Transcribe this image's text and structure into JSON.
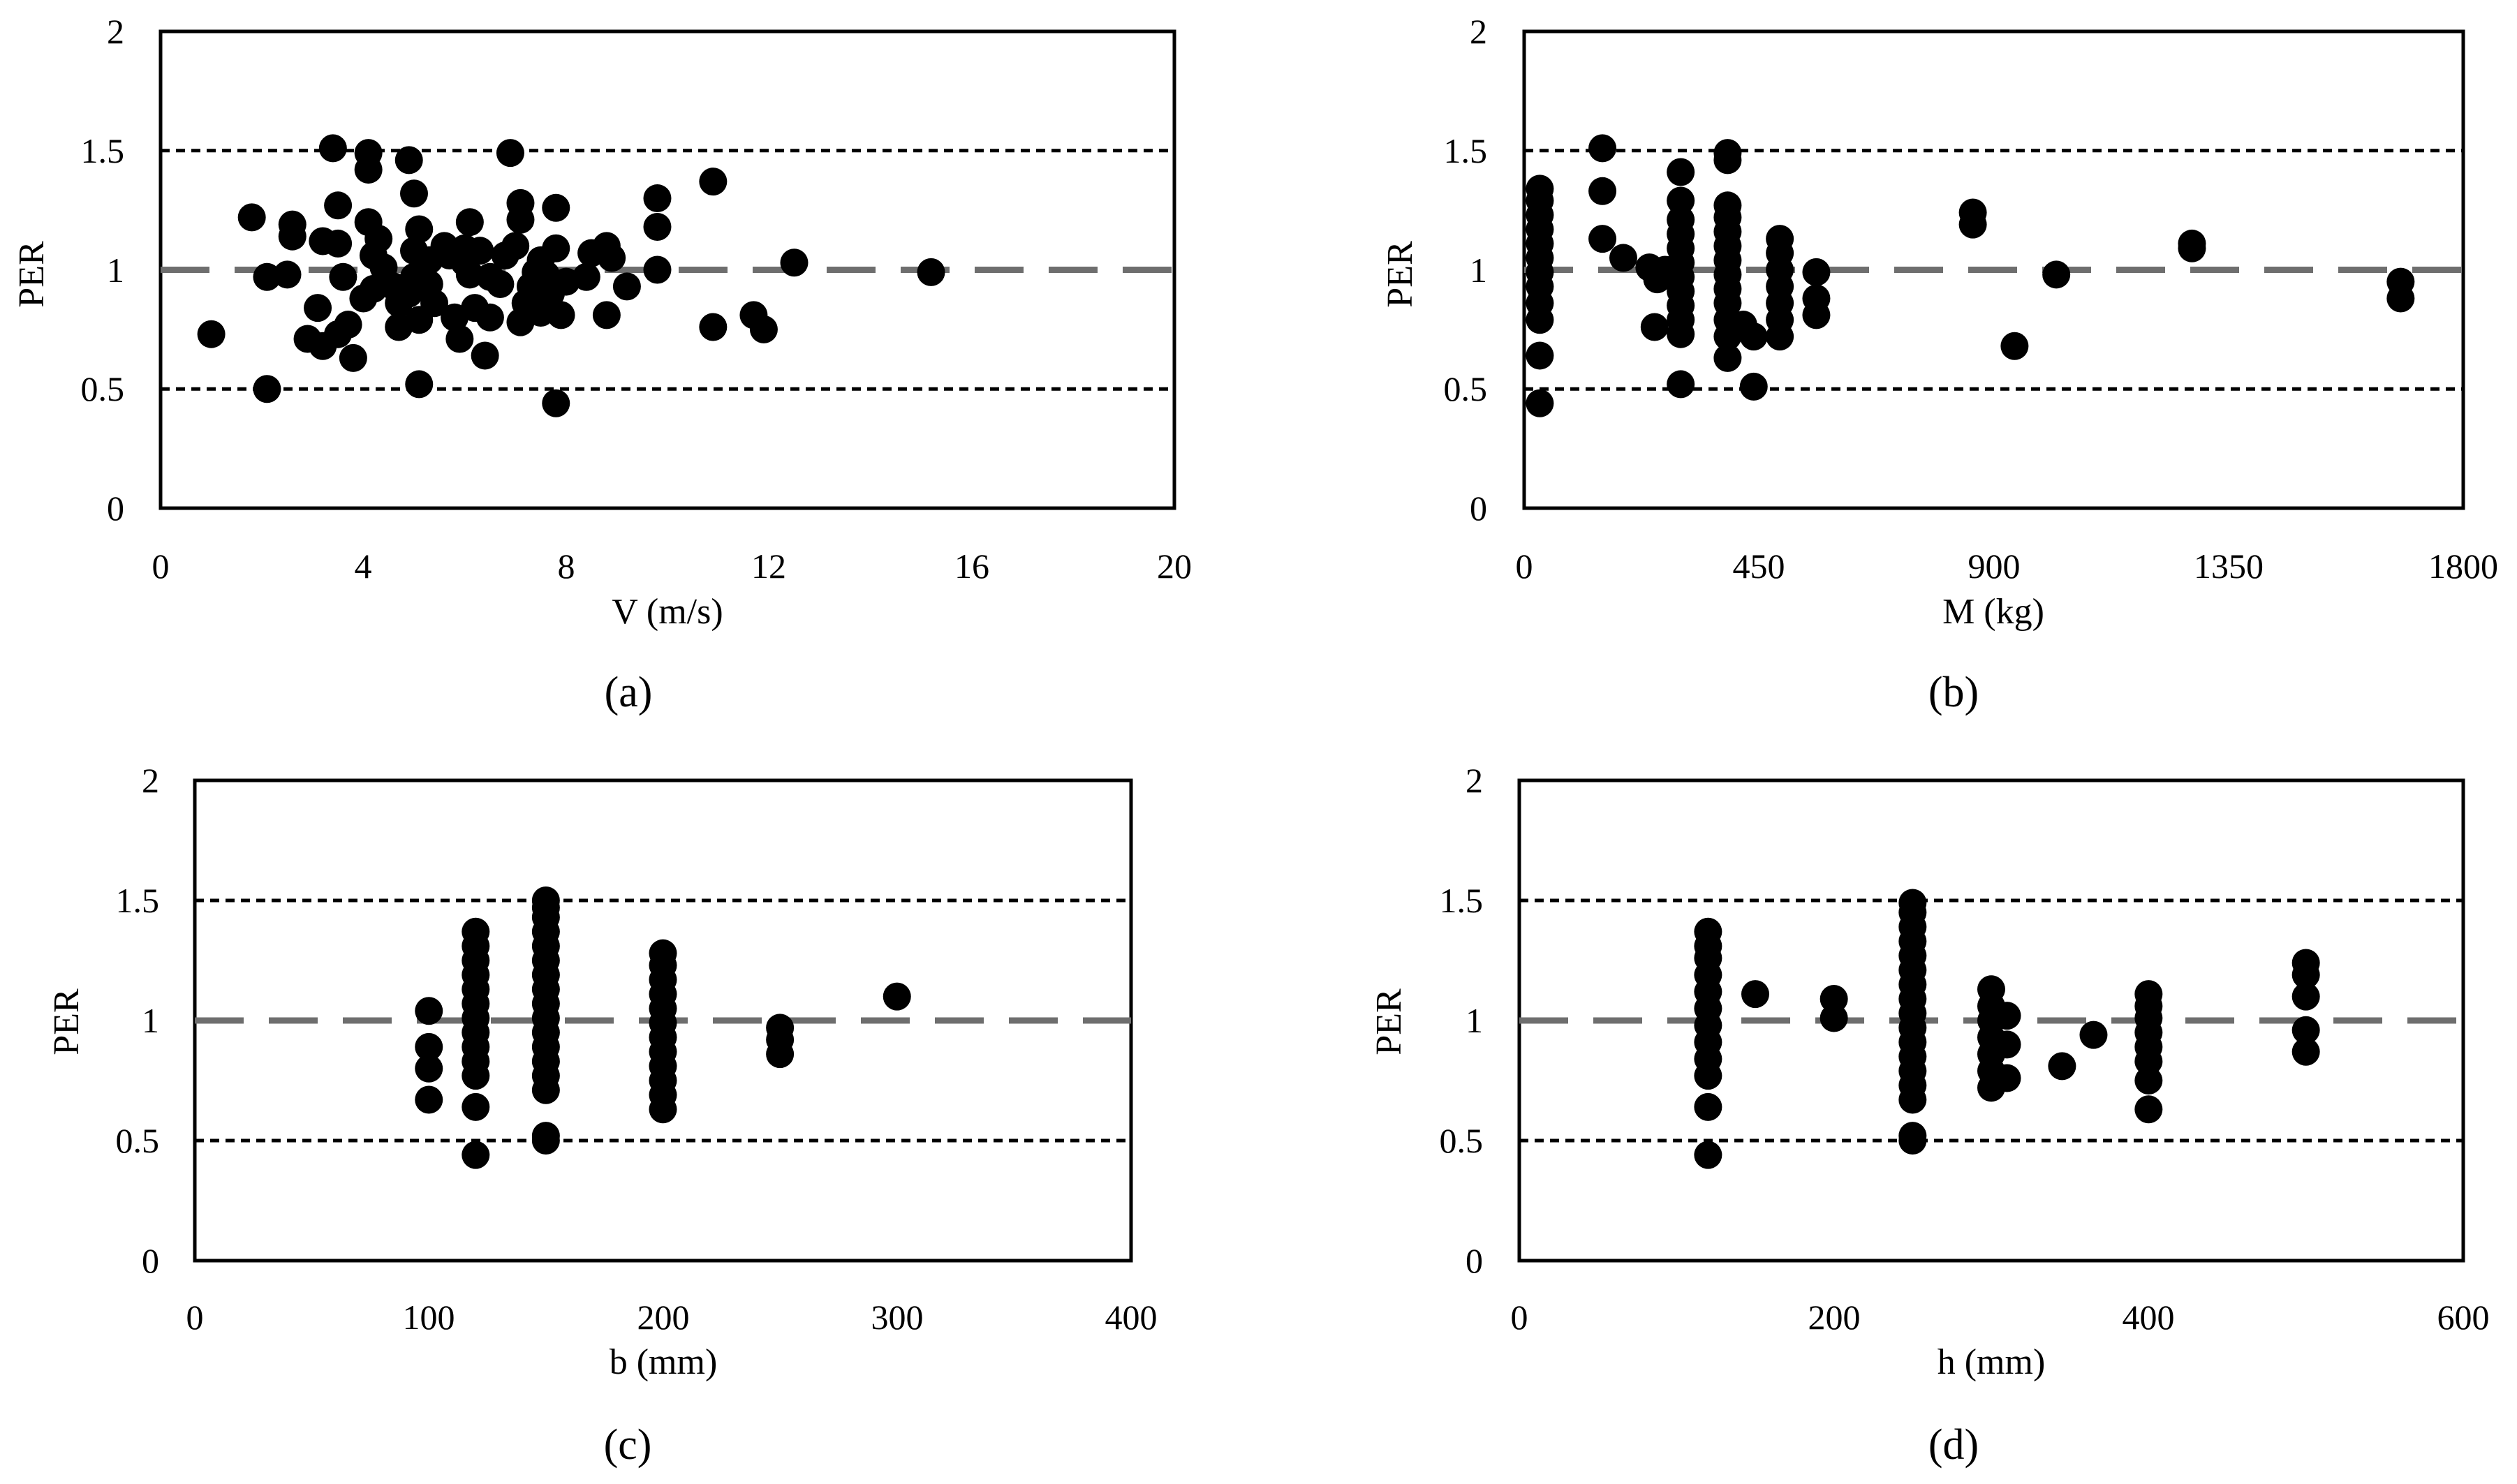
{
  "chart_data": [
    {
      "type": "scatter",
      "panel_label": "(a)",
      "xlabel": "V (m/s)",
      "ylabel": "PER",
      "xlim": [
        0,
        20
      ],
      "ylim": [
        0,
        2
      ],
      "xticks": [
        "0",
        "4",
        "8",
        "12",
        "16",
        "20"
      ],
      "yticks": [
        "0",
        "0.5",
        "1",
        "1.5",
        "2"
      ],
      "reference_lines": [
        {
          "y": 1.5,
          "style": "dotted"
        },
        {
          "y": 1.0,
          "style": "dashed"
        },
        {
          "y": 0.5,
          "style": "dotted"
        }
      ],
      "points": [
        [
          1.0,
          0.73
        ],
        [
          1.8,
          1.22
        ],
        [
          2.1,
          0.97
        ],
        [
          2.1,
          0.5
        ],
        [
          2.5,
          0.98
        ],
        [
          2.6,
          1.14
        ],
        [
          2.6,
          1.19
        ],
        [
          2.9,
          0.71
        ],
        [
          3.1,
          0.84
        ],
        [
          3.2,
          0.68
        ],
        [
          3.2,
          1.12
        ],
        [
          3.4,
          1.51
        ],
        [
          3.5,
          1.27
        ],
        [
          3.5,
          0.73
        ],
        [
          3.5,
          1.11
        ],
        [
          3.6,
          0.97
        ],
        [
          3.7,
          0.77
        ],
        [
          3.8,
          0.63
        ],
        [
          4.0,
          0.88
        ],
        [
          4.1,
          1.49
        ],
        [
          4.1,
          1.2
        ],
        [
          4.1,
          1.42
        ],
        [
          4.2,
          0.92
        ],
        [
          4.2,
          1.06
        ],
        [
          4.3,
          1.13
        ],
        [
          4.4,
          1.01
        ],
        [
          4.6,
          0.93
        ],
        [
          4.7,
          0.76
        ],
        [
          4.7,
          0.86
        ],
        [
          4.9,
          1.46
        ],
        [
          4.9,
          0.9
        ],
        [
          5.0,
          1.32
        ],
        [
          5.0,
          0.97
        ],
        [
          5.0,
          1.08
        ],
        [
          5.1,
          0.79
        ],
        [
          5.1,
          1.17
        ],
        [
          5.1,
          0.52
        ],
        [
          5.2,
          1.02
        ],
        [
          5.3,
          0.94
        ],
        [
          5.3,
          1.04
        ],
        [
          5.4,
          0.86
        ],
        [
          5.6,
          1.1
        ],
        [
          5.7,
          1.06
        ],
        [
          5.8,
          0.8
        ],
        [
          5.9,
          0.71
        ],
        [
          6.0,
          1.09
        ],
        [
          6.0,
          1.03
        ],
        [
          6.1,
          1.2
        ],
        [
          6.1,
          0.98
        ],
        [
          6.2,
          0.84
        ],
        [
          6.3,
          1.08
        ],
        [
          6.4,
          0.64
        ],
        [
          6.5,
          0.8
        ],
        [
          6.5,
          0.97
        ],
        [
          6.7,
          0.94
        ],
        [
          6.8,
          1.06
        ],
        [
          6.9,
          1.49
        ],
        [
          7.0,
          1.1
        ],
        [
          7.1,
          0.78
        ],
        [
          7.1,
          1.21
        ],
        [
          7.1,
          1.28
        ],
        [
          7.2,
          0.86
        ],
        [
          7.3,
          0.93
        ],
        [
          7.4,
          0.99
        ],
        [
          7.5,
          1.04
        ],
        [
          7.5,
          0.82
        ],
        [
          7.6,
          0.98
        ],
        [
          7.7,
          0.9
        ],
        [
          7.8,
          1.26
        ],
        [
          7.8,
          0.44
        ],
        [
          7.8,
          1.09
        ],
        [
          7.9,
          0.81
        ],
        [
          8.0,
          0.95
        ],
        [
          8.4,
          0.97
        ],
        [
          8.5,
          1.07
        ],
        [
          8.8,
          0.81
        ],
        [
          8.8,
          1.1
        ],
        [
          8.9,
          1.05
        ],
        [
          9.2,
          0.93
        ],
        [
          9.8,
          1.3
        ],
        [
          9.8,
          1.0
        ],
        [
          9.8,
          1.18
        ],
        [
          10.9,
          0.76
        ],
        [
          10.9,
          1.37
        ],
        [
          11.7,
          0.81
        ],
        [
          11.9,
          0.75
        ],
        [
          12.5,
          1.03
        ],
        [
          15.2,
          0.99
        ]
      ]
    },
    {
      "type": "scatter",
      "panel_label": "(b)",
      "xlabel": "M (kg)",
      "ylabel": "PER",
      "xlim": [
        0,
        1800
      ],
      "ylim": [
        0,
        2
      ],
      "xticks": [
        "0",
        "450",
        "900",
        "1350",
        "1800"
      ],
      "yticks": [
        "0",
        "0.5",
        "1",
        "1.5",
        "2"
      ],
      "reference_lines": [
        {
          "y": 1.5,
          "style": "dotted"
        },
        {
          "y": 1.0,
          "style": "dashed"
        },
        {
          "y": 0.5,
          "style": "dotted"
        }
      ],
      "points": [
        [
          30,
          0.44
        ],
        [
          30,
          0.64
        ],
        [
          30,
          0.79
        ],
        [
          30,
          0.86
        ],
        [
          30,
          0.93
        ],
        [
          30,
          0.99
        ],
        [
          30,
          1.05
        ],
        [
          30,
          1.11
        ],
        [
          30,
          1.17
        ],
        [
          30,
          1.23
        ],
        [
          30,
          1.29
        ],
        [
          30,
          1.34
        ],
        [
          150,
          1.51
        ],
        [
          150,
          1.33
        ],
        [
          150,
          1.13
        ],
        [
          190,
          1.05
        ],
        [
          240,
          1.01
        ],
        [
          250,
          0.76
        ],
        [
          255,
          0.96
        ],
        [
          270,
          1.0
        ],
        [
          300,
          0.52
        ],
        [
          300,
          0.73
        ],
        [
          300,
          0.79
        ],
        [
          300,
          0.85
        ],
        [
          300,
          0.91
        ],
        [
          300,
          0.97
        ],
        [
          300,
          1.03
        ],
        [
          300,
          1.09
        ],
        [
          300,
          1.15
        ],
        [
          300,
          1.21
        ],
        [
          300,
          1.29
        ],
        [
          300,
          1.41
        ],
        [
          390,
          0.63
        ],
        [
          390,
          0.72
        ],
        [
          390,
          0.79
        ],
        [
          390,
          0.86
        ],
        [
          390,
          0.92
        ],
        [
          390,
          0.98
        ],
        [
          390,
          1.04
        ],
        [
          390,
          1.1
        ],
        [
          390,
          1.16
        ],
        [
          390,
          1.22
        ],
        [
          390,
          1.27
        ],
        [
          390,
          1.46
        ],
        [
          390,
          1.49
        ],
        [
          420,
          0.77
        ],
        [
          440,
          0.72
        ],
        [
          440,
          0.51
        ],
        [
          490,
          0.72
        ],
        [
          490,
          0.79
        ],
        [
          490,
          0.86
        ],
        [
          490,
          0.93
        ],
        [
          490,
          1.0
        ],
        [
          490,
          1.07
        ],
        [
          490,
          1.13
        ],
        [
          560,
          0.81
        ],
        [
          560,
          0.88
        ],
        [
          560,
          0.99
        ],
        [
          860,
          1.19
        ],
        [
          860,
          1.24
        ],
        [
          940,
          0.68
        ],
        [
          1020,
          0.98
        ],
        [
          1280,
          1.09
        ],
        [
          1280,
          1.11
        ],
        [
          1680,
          0.88
        ],
        [
          1680,
          0.95
        ]
      ]
    },
    {
      "type": "scatter",
      "panel_label": "(c)",
      "xlabel": "b (mm)",
      "ylabel": "PER",
      "xlim": [
        0,
        400
      ],
      "ylim": [
        0,
        2
      ],
      "xticks": [
        "0",
        "100",
        "200",
        "300",
        "400"
      ],
      "yticks": [
        "0",
        "0.5",
        "1",
        "1.5",
        "2"
      ],
      "reference_lines": [
        {
          "y": 1.5,
          "style": "dotted"
        },
        {
          "y": 1.0,
          "style": "dashed"
        },
        {
          "y": 0.5,
          "style": "dotted"
        }
      ],
      "points": [
        [
          100,
          0.67
        ],
        [
          100,
          0.8
        ],
        [
          100,
          0.89
        ],
        [
          100,
          1.04
        ],
        [
          120,
          0.44
        ],
        [
          120,
          0.64
        ],
        [
          120,
          0.77
        ],
        [
          120,
          0.83
        ],
        [
          120,
          0.89
        ],
        [
          120,
          0.95
        ],
        [
          120,
          1.01
        ],
        [
          120,
          1.07
        ],
        [
          120,
          1.13
        ],
        [
          120,
          1.19
        ],
        [
          120,
          1.25
        ],
        [
          120,
          1.31
        ],
        [
          120,
          1.37
        ],
        [
          150,
          0.5
        ],
        [
          150,
          0.52
        ],
        [
          150,
          0.71
        ],
        [
          150,
          0.77
        ],
        [
          150,
          0.83
        ],
        [
          150,
          0.89
        ],
        [
          150,
          0.95
        ],
        [
          150,
          1.01
        ],
        [
          150,
          1.07
        ],
        [
          150,
          1.13
        ],
        [
          150,
          1.19
        ],
        [
          150,
          1.25
        ],
        [
          150,
          1.31
        ],
        [
          150,
          1.37
        ],
        [
          150,
          1.43
        ],
        [
          150,
          1.47
        ],
        [
          150,
          1.5
        ],
        [
          200,
          0.63
        ],
        [
          200,
          0.69
        ],
        [
          200,
          0.75
        ],
        [
          200,
          0.81
        ],
        [
          200,
          0.87
        ],
        [
          200,
          0.93
        ],
        [
          200,
          0.99
        ],
        [
          200,
          1.05
        ],
        [
          200,
          1.11
        ],
        [
          200,
          1.17
        ],
        [
          200,
          1.23
        ],
        [
          200,
          1.28
        ],
        [
          250,
          0.86
        ],
        [
          250,
          0.92
        ],
        [
          250,
          0.97
        ],
        [
          300,
          1.1
        ]
      ]
    },
    {
      "type": "scatter",
      "panel_label": "(d)",
      "xlabel": "h (mm)",
      "ylabel": "PER",
      "xlim": [
        0,
        600
      ],
      "ylim": [
        0,
        2
      ],
      "xticks": [
        "0",
        "200",
        "400",
        "600"
      ],
      "yticks": [
        "0",
        "0.5",
        "1",
        "1.5",
        "2"
      ],
      "reference_lines": [
        {
          "y": 1.5,
          "style": "dotted"
        },
        {
          "y": 1.0,
          "style": "dashed"
        },
        {
          "y": 0.5,
          "style": "dotted"
        }
      ],
      "points": [
        [
          120,
          0.44
        ],
        [
          120,
          0.64
        ],
        [
          120,
          0.77
        ],
        [
          120,
          0.84
        ],
        [
          120,
          0.91
        ],
        [
          120,
          0.98
        ],
        [
          120,
          1.05
        ],
        [
          120,
          1.12
        ],
        [
          120,
          1.19
        ],
        [
          120,
          1.26
        ],
        [
          120,
          1.31
        ],
        [
          120,
          1.37
        ],
        [
          150,
          1.11
        ],
        [
          200,
          1.01
        ],
        [
          200,
          1.09
        ],
        [
          250,
          0.5
        ],
        [
          250,
          0.52
        ],
        [
          250,
          0.67
        ],
        [
          250,
          0.73
        ],
        [
          250,
          0.79
        ],
        [
          250,
          0.85
        ],
        [
          250,
          0.91
        ],
        [
          250,
          0.97
        ],
        [
          250,
          1.03
        ],
        [
          250,
          1.09
        ],
        [
          250,
          1.15
        ],
        [
          250,
          1.21
        ],
        [
          250,
          1.27
        ],
        [
          250,
          1.33
        ],
        [
          250,
          1.39
        ],
        [
          250,
          1.45
        ],
        [
          250,
          1.49
        ],
        [
          300,
          0.72
        ],
        [
          300,
          0.79
        ],
        [
          300,
          0.86
        ],
        [
          300,
          0.93
        ],
        [
          300,
          1.0
        ],
        [
          300,
          1.06
        ],
        [
          300,
          1.13
        ],
        [
          310,
          0.76
        ],
        [
          310,
          0.9
        ],
        [
          310,
          1.02
        ],
        [
          345,
          0.81
        ],
        [
          365,
          0.94
        ],
        [
          400,
          0.63
        ],
        [
          400,
          0.75
        ],
        [
          400,
          0.83
        ],
        [
          400,
          0.89
        ],
        [
          400,
          0.95
        ],
        [
          400,
          1.01
        ],
        [
          400,
          1.06
        ],
        [
          400,
          1.11
        ],
        [
          500,
          0.87
        ],
        [
          500,
          0.96
        ],
        [
          500,
          1.1
        ],
        [
          500,
          1.19
        ],
        [
          500,
          1.24
        ]
      ]
    }
  ]
}
